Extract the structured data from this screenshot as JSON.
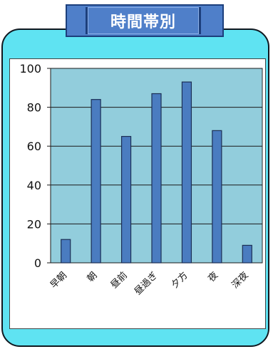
{
  "title": "時間帯別",
  "colors": {
    "card_bg": "#5fe3f2",
    "banner_bg": "#4f7fc9",
    "plot_bg": "#92cddc",
    "bar_fill": "#4a7cc0",
    "bar_stroke": "#1c2f55"
  },
  "chart_data": {
    "type": "bar",
    "title": "時間帯別",
    "categories": [
      "早朝",
      "朝",
      "昼前",
      "昼過ぎ",
      "夕方",
      "夜",
      "深夜"
    ],
    "values": [
      12,
      84,
      65,
      87,
      93,
      68,
      9
    ],
    "xlabel": "",
    "ylabel": "",
    "ylim": [
      0,
      100
    ],
    "yticks": [
      0,
      20,
      40,
      60,
      80,
      100
    ],
    "grid": true,
    "legend": "none"
  }
}
